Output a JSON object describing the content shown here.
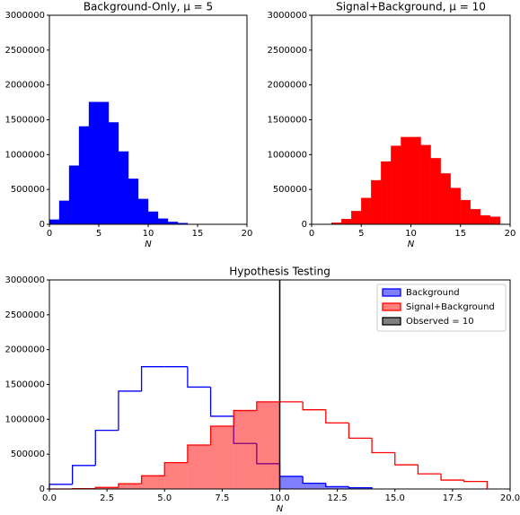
{
  "chart_data": [
    {
      "type": "histogram",
      "title": "Background-Only, μ = 5",
      "xlabel": "N",
      "bins": [
        0,
        1,
        2,
        3,
        4,
        5,
        6,
        7,
        8,
        9,
        10,
        11,
        12,
        13,
        14
      ],
      "values": [
        67000,
        337000,
        842000,
        1404000,
        1755000,
        1755000,
        1462000,
        1044000,
        653000,
        363000,
        181000,
        82000,
        34000,
        18000
      ],
      "color": "#0000ff",
      "xlim": [
        0,
        20
      ],
      "xticks": [
        0,
        5,
        10,
        15,
        20
      ],
      "ylim": [
        0,
        3000000
      ],
      "yticks": [
        0,
        500000,
        1000000,
        1500000,
        2000000,
        2500000,
        3000000
      ]
    },
    {
      "type": "histogram",
      "title": "Signal+Background, μ = 10",
      "xlabel": "N",
      "bins": [
        0,
        1,
        2,
        3,
        4,
        5,
        6,
        7,
        8,
        9,
        10,
        11,
        12,
        13,
        14,
        15,
        16,
        17,
        18,
        19
      ],
      "values": [
        454,
        4540,
        22700,
        75700,
        189000,
        378000,
        631000,
        901000,
        1126000,
        1251000,
        1251000,
        1137000,
        948000,
        729000,
        521000,
        347000,
        217000,
        128000,
        108000
      ],
      "color": "#ff0000",
      "xlim": [
        0,
        20
      ],
      "xticks": [
        0,
        5,
        10,
        15,
        20
      ],
      "ylim": [
        0,
        3000000
      ],
      "yticks": [
        0,
        500000,
        1000000,
        1500000,
        2000000,
        2500000,
        3000000
      ]
    },
    {
      "type": "step-histogram",
      "title": "Hypothesis Testing",
      "xlabel": "N",
      "series": [
        {
          "name": "Background",
          "color": "#0000ff",
          "fill_side": "right",
          "bins": [
            0,
            1,
            2,
            3,
            4,
            5,
            6,
            7,
            8,
            9,
            10,
            11,
            12,
            13,
            14
          ],
          "values": [
            67000,
            337000,
            842000,
            1404000,
            1755000,
            1755000,
            1462000,
            1044000,
            653000,
            363000,
            181000,
            82000,
            34000,
            18000
          ]
        },
        {
          "name": "Signal+Background",
          "color": "#ff0000",
          "fill_side": "left",
          "bins": [
            0,
            1,
            2,
            3,
            4,
            5,
            6,
            7,
            8,
            9,
            10,
            11,
            12,
            13,
            14,
            15,
            16,
            17,
            18,
            19
          ],
          "values": [
            454,
            4540,
            22700,
            75700,
            189000,
            378000,
            631000,
            901000,
            1126000,
            1251000,
            1251000,
            1137000,
            948000,
            729000,
            521000,
            347000,
            217000,
            128000,
            108000
          ]
        }
      ],
      "observed": 10,
      "observed_label": "Observed = 10",
      "observed_color": "#000000",
      "legend": "upper right",
      "xlim": [
        0,
        20
      ],
      "xticks": [
        {
          "value": 0,
          "label": "0.0"
        },
        {
          "value": 2.5,
          "label": "2.5"
        },
        {
          "value": 5,
          "label": "5.0"
        },
        {
          "value": 7.5,
          "label": "7.5"
        },
        {
          "value": 10,
          "label": "10.0"
        },
        {
          "value": 12.5,
          "label": "12.5"
        },
        {
          "value": 15,
          "label": "15.0"
        },
        {
          "value": 17.5,
          "label": "17.5"
        },
        {
          "value": 20,
          "label": "20.0"
        }
      ],
      "ylim": [
        0,
        3000000
      ],
      "yticks": [
        0,
        500000,
        1000000,
        1500000,
        2000000,
        2500000,
        3000000
      ]
    }
  ]
}
